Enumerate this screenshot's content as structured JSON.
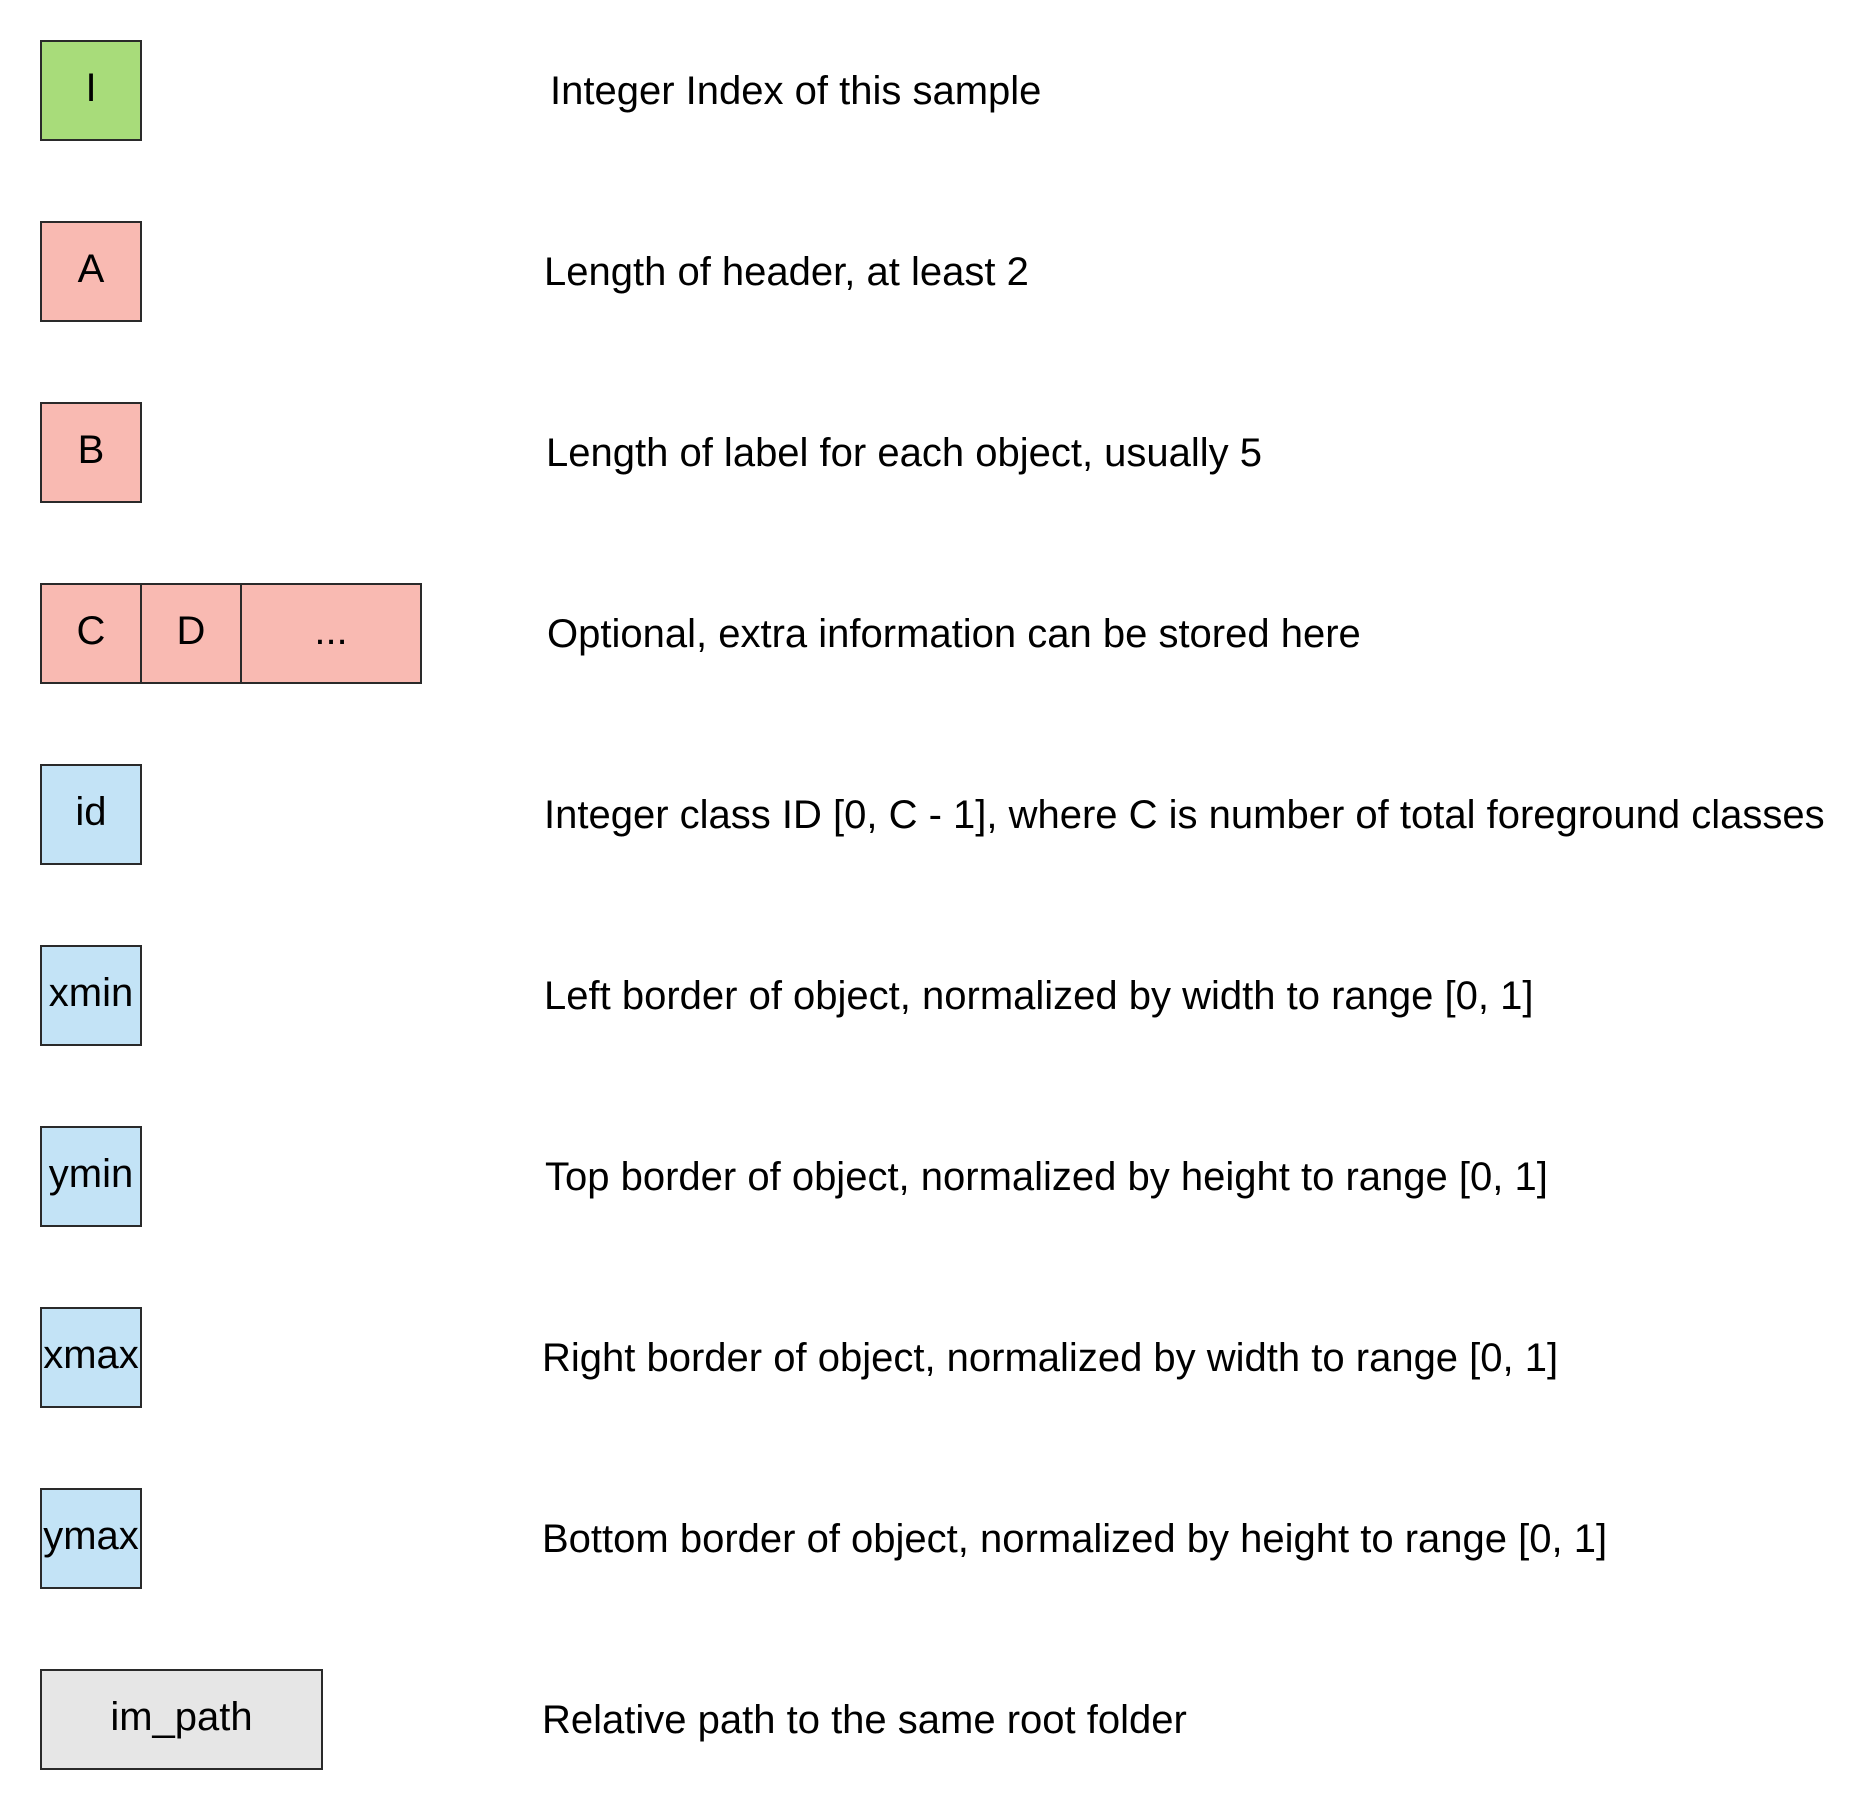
{
  "colors": {
    "index": "#a8dc7a",
    "header": "#f9bab2",
    "object": "#c3e3f6",
    "path": "#e6e6e6",
    "border": "#2a2a2a",
    "text": "#000000"
  },
  "rows": [
    {
      "fields": [
        {
          "label": "I",
          "color": "index"
        }
      ],
      "description": "Integer Index of this sample"
    },
    {
      "fields": [
        {
          "label": "A",
          "color": "header"
        }
      ],
      "description": "Length of header, at least 2"
    },
    {
      "fields": [
        {
          "label": "B",
          "color": "header"
        }
      ],
      "description": "Length of label for each object, usually 5"
    },
    {
      "fields": [
        {
          "label": "C",
          "color": "header"
        },
        {
          "label": "D",
          "color": "header"
        },
        {
          "label": "...",
          "color": "header"
        }
      ],
      "description": "Optional, extra information can be stored here"
    },
    {
      "fields": [
        {
          "label": "id",
          "color": "object"
        }
      ],
      "description": "Integer class ID [0, C - 1], where C is number of total foreground classes"
    },
    {
      "fields": [
        {
          "label": "xmin",
          "color": "object"
        }
      ],
      "description": "Left border of object, normalized by width to range [0, 1]"
    },
    {
      "fields": [
        {
          "label": "ymin",
          "color": "object"
        }
      ],
      "description": "Top border of object, normalized by height to range [0, 1]"
    },
    {
      "fields": [
        {
          "label": "xmax",
          "color": "object"
        }
      ],
      "description": "Right border of object, normalized by width to range [0, 1]"
    },
    {
      "fields": [
        {
          "label": "ymax",
          "color": "object"
        }
      ],
      "description": "Bottom border of object, normalized by height to range [0, 1]"
    },
    {
      "fields": [
        {
          "label": "im_path",
          "color": "path"
        }
      ],
      "description": "Relative path to the same root folder"
    }
  ]
}
